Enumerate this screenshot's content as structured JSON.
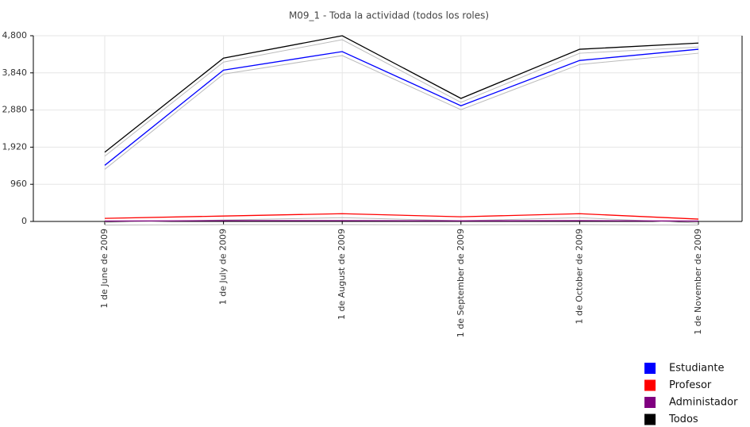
{
  "chart_data": {
    "type": "line",
    "title": "M09_1 - Toda la actividad (todos los roles)",
    "categories": [
      "1 de June de 2009",
      "1 de July de 2009",
      "1 de August de 2009",
      "1 de September de 2009",
      "1 de October de 2009",
      "1 de November de 2009"
    ],
    "series": [
      {
        "name": "Estudiante",
        "color": "#0000ff",
        "values": [
          1450,
          3910,
          4390,
          2990,
          4160,
          4450
        ]
      },
      {
        "name": "Profesor",
        "color": "#ff0000",
        "values": [
          80,
          140,
          200,
          120,
          200,
          60
        ]
      },
      {
        "name": "Administador",
        "color": "#800080",
        "values": [
          10,
          20,
          20,
          15,
          20,
          10
        ]
      },
      {
        "name": "Todos",
        "color": "#000000",
        "values": [
          1790,
          4220,
          4800,
          3180,
          4450,
          4610
        ]
      }
    ],
    "ylim": [
      0,
      4800
    ],
    "yticks": [
      0,
      960,
      {
        "value": 1920,
        "label": "1,920"
      },
      {
        "value": 2880,
        "label": "2,880"
      },
      {
        "value": 3840,
        "label": "3,840"
      },
      {
        "value": 4800,
        "label": "4,800"
      }
    ],
    "grid": true,
    "legend": "bottom-right"
  }
}
